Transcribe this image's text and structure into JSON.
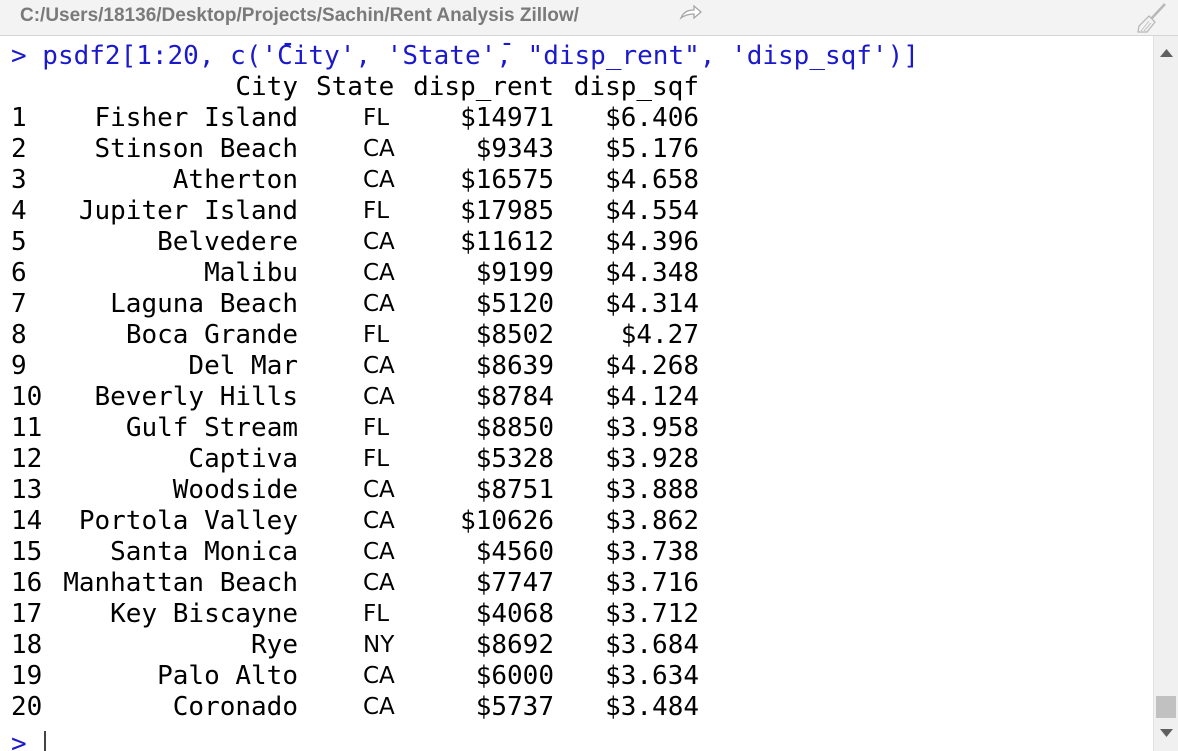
{
  "window": {
    "path": "C:/Users/18136/Desktop/Projects/Sachin/Rent Analysis Zillow/"
  },
  "console": {
    "command": "> psdf2[1:20, c('City', 'State', \"disp_rent\", 'disp_sqf')]",
    "prompt": ">",
    "columns": [
      "City",
      "State",
      "disp_rent",
      "disp_sqf"
    ],
    "rows": [
      {
        "idx": "1",
        "city": "Fisher Island",
        "state": "FL",
        "rent": "$14971",
        "sqf": "$6.406"
      },
      {
        "idx": "2",
        "city": "Stinson Beach",
        "state": "CA",
        "rent": "$9343",
        "sqf": "$5.176"
      },
      {
        "idx": "3",
        "city": "Atherton",
        "state": "CA",
        "rent": "$16575",
        "sqf": "$4.658"
      },
      {
        "idx": "4",
        "city": "Jupiter Island",
        "state": "FL",
        "rent": "$17985",
        "sqf": "$4.554"
      },
      {
        "idx": "5",
        "city": "Belvedere",
        "state": "CA",
        "rent": "$11612",
        "sqf": "$4.396"
      },
      {
        "idx": "6",
        "city": "Malibu",
        "state": "CA",
        "rent": "$9199",
        "sqf": "$4.348"
      },
      {
        "idx": "7",
        "city": "Laguna Beach",
        "state": "CA",
        "rent": "$5120",
        "sqf": "$4.314"
      },
      {
        "idx": "8",
        "city": "Boca Grande",
        "state": "FL",
        "rent": "$8502",
        "sqf": "$4.27"
      },
      {
        "idx": "9",
        "city": "Del Mar",
        "state": "CA",
        "rent": "$8639",
        "sqf": "$4.268"
      },
      {
        "idx": "10",
        "city": "Beverly Hills",
        "state": "CA",
        "rent": "$8784",
        "sqf": "$4.124"
      },
      {
        "idx": "11",
        "city": "Gulf Stream",
        "state": "FL",
        "rent": "$8850",
        "sqf": "$3.958"
      },
      {
        "idx": "12",
        "city": "Captiva",
        "state": "FL",
        "rent": "$5328",
        "sqf": "$3.928"
      },
      {
        "idx": "13",
        "city": "Woodside",
        "state": "CA",
        "rent": "$8751",
        "sqf": "$3.888"
      },
      {
        "idx": "14",
        "city": "Portola Valley",
        "state": "CA",
        "rent": "$10626",
        "sqf": "$3.862"
      },
      {
        "idx": "15",
        "city": "Santa Monica",
        "state": "CA",
        "rent": "$4560",
        "sqf": "$3.738"
      },
      {
        "idx": "16",
        "city": "Manhattan Beach",
        "state": "CA",
        "rent": "$7747",
        "sqf": "$3.716"
      },
      {
        "idx": "17",
        "city": "Key Biscayne",
        "state": "FL",
        "rent": "$4068",
        "sqf": "$3.712"
      },
      {
        "idx": "18",
        "city": "Rye",
        "state": "NY",
        "rent": "$8692",
        "sqf": "$3.684"
      },
      {
        "idx": "19",
        "city": "Palo Alto",
        "state": "CA",
        "rent": "$6000",
        "sqf": "$3.634"
      },
      {
        "idx": "20",
        "city": "Coronado",
        "state": "CA",
        "rent": "$5737",
        "sqf": "$3.484"
      }
    ]
  },
  "colors": {
    "command_text": "#1a1acc",
    "output_text": "#000000",
    "path_text": "#7a7a7a"
  },
  "icons": {
    "path_link": "arrow-right-icon",
    "clear_console": "broom-icon",
    "scroll_up": "triangle-up-icon",
    "scroll_down": "triangle-down-icon"
  }
}
